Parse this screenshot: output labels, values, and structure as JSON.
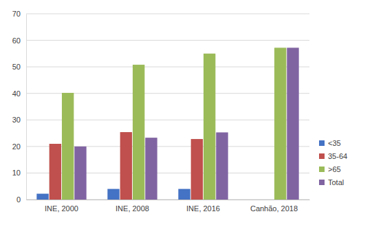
{
  "chart_data": {
    "type": "bar",
    "categories": [
      "INE, 2000",
      "INE, 2008",
      "INE, 2016",
      "Canhão, 2018"
    ],
    "series": [
      {
        "name": "<35",
        "color": "#4472c4",
        "values": [
          2.2,
          4,
          4,
          null
        ]
      },
      {
        "name": "35-64",
        "color": "#c0504d",
        "values": [
          21,
          25.4,
          22.8,
          null
        ]
      },
      {
        "name": ">65",
        "color": "#9bbb59",
        "values": [
          40.2,
          50.8,
          55,
          57.2
        ]
      },
      {
        "name": "Total",
        "color": "#8064a2",
        "values": [
          20,
          23.3,
          25.3,
          57.2
        ]
      }
    ],
    "ylim": [
      0,
      70
    ],
    "yticks": [
      0,
      10,
      20,
      30,
      40,
      50,
      60,
      70
    ],
    "grid": true,
    "legend": "right"
  }
}
